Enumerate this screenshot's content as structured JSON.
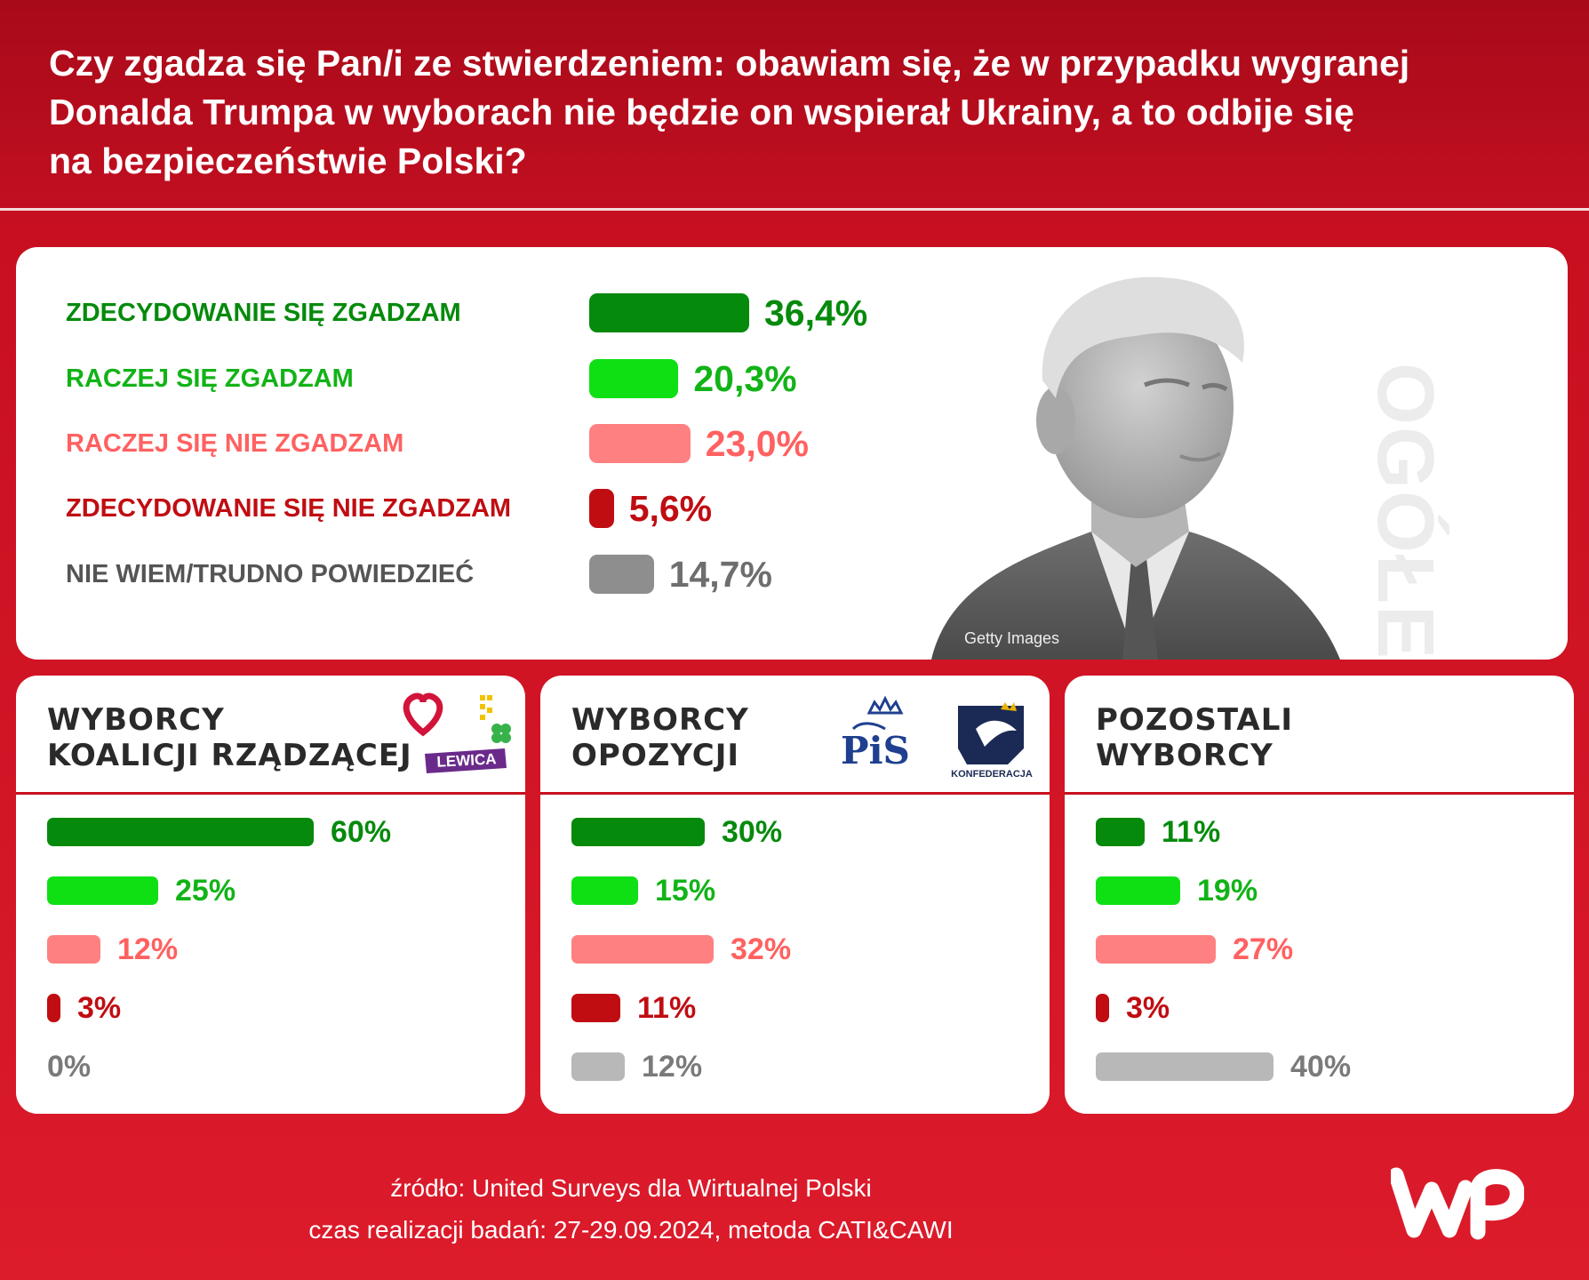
{
  "title_lines": [
    "Czy zgadza się Pan/i ze stwierdzeniem: obawiam się, że w przypadku wygranej",
    "Donalda Trumpa w wyborach nie będzie on wspierał Ukrainy, a to odbije się",
    "na bezpieczeństwie Polski?"
  ],
  "overall": {
    "label": "OGÓŁEM",
    "photo_credit": "Getty Images"
  },
  "colors": {
    "strongly_agree": "#068a0c",
    "agree": "#0fe014",
    "disagree": "#ff8080",
    "strongly_disagree": "#c00d12",
    "dont_know": "#8e8e8e",
    "dont_know_light": "#b8b8b8"
  },
  "logos": {
    "koalicja": {
      "lewica": "LEWICA"
    },
    "opozycja": {
      "pis": "PiS",
      "konfederacja": "KONFEDERACJA"
    }
  },
  "chart_data": [
    {
      "type": "bar",
      "orientation": "horizontal",
      "title": "OGÓŁEM",
      "categories": [
        "ZDECYDOWANIE SIĘ ZGADZAM",
        "RACZEJ SIĘ ZGADZAM",
        "RACZEJ SIĘ NIE ZGADZAM",
        "ZDECYDOWANIE SIĘ NIE ZGADZAM",
        "NIE WIEM/TRUDNO POWIEDZIEĆ"
      ],
      "values": [
        36.4,
        20.3,
        23.0,
        5.6,
        14.7
      ],
      "value_labels": [
        "36,4%",
        "20,3%",
        "23,0%",
        "5,6%",
        "14,7%"
      ],
      "grid": false
    },
    {
      "type": "bar",
      "orientation": "horizontal",
      "title_lines": [
        "WYBORCY",
        "KOALICJI RZĄDZĄCEJ"
      ],
      "values": [
        60,
        25,
        12,
        3,
        0
      ],
      "value_labels": [
        "60%",
        "25%",
        "12%",
        "3%",
        "0%"
      ],
      "grid": false
    },
    {
      "type": "bar",
      "orientation": "horizontal",
      "title_lines": [
        "WYBORCY",
        "OPOZYCJI"
      ],
      "values": [
        30,
        15,
        32,
        11,
        12
      ],
      "value_labels": [
        "30%",
        "15%",
        "32%",
        "11%",
        "12%"
      ],
      "grid": false
    },
    {
      "type": "bar",
      "orientation": "horizontal",
      "title_lines": [
        "POZOSTALI",
        "WYBORCY"
      ],
      "values": [
        11,
        19,
        27,
        3,
        40
      ],
      "value_labels": [
        "11%",
        "19%",
        "27%",
        "3%",
        "40%"
      ],
      "grid": false
    }
  ],
  "footer": {
    "source": "źródło: United Surveys dla Wirtualnej Polski",
    "method": "czas realizacji badań: 27-29.09.2024, metoda CATI&CAWI"
  }
}
